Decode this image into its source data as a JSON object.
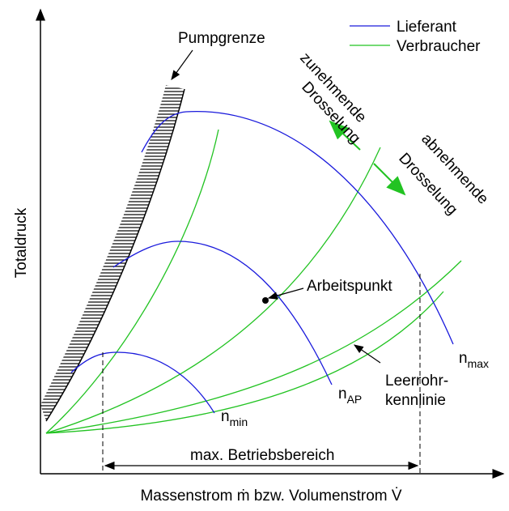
{
  "legend": [
    {
      "label": "Lieferant",
      "color": "#1a1adc"
    },
    {
      "label": "Verbraucher",
      "color": "#22c322"
    }
  ],
  "labels": {
    "pump_limit": "Pumpgrenze",
    "throttle_up": [
      "zunehmende",
      "Drosselung"
    ],
    "throttle_down": [
      "abnehmende",
      "Drosselung"
    ],
    "operating_point": "Arbeitspunkt",
    "empty_pipe": [
      "Leerrohr-",
      "kennlinie"
    ],
    "range": "max. Betriebsbereich",
    "y_axis": "Totaldruck",
    "x_axis": "Massenstrom ṁ bzw. Volumenstrom V̇",
    "n_max": {
      "base": "n",
      "sub": "max"
    },
    "n_ap": {
      "base": "n",
      "sub": "AP"
    },
    "n_min": {
      "base": "n",
      "sub": "min"
    }
  }
}
